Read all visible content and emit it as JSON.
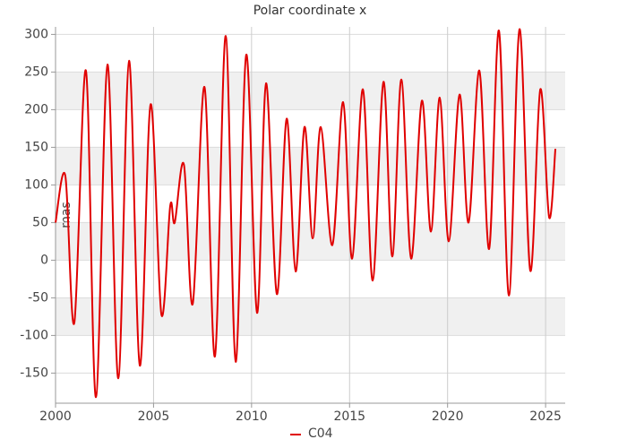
{
  "chart_data": {
    "type": "line",
    "title": "Polar coordinate x",
    "y_label": "mas",
    "x": [
      2000.0,
      2000.5,
      2000.96,
      2001.55,
      2002.06,
      2002.65,
      2003.2,
      2003.75,
      2004.3,
      2004.85,
      2005.4,
      2005.85,
      2006.08,
      2006.55,
      2007.0,
      2007.6,
      2008.13,
      2008.68,
      2009.19,
      2009.73,
      2010.28,
      2010.74,
      2011.29,
      2011.79,
      2012.25,
      2012.7,
      2013.12,
      2013.53,
      2014.12,
      2014.67,
      2015.13,
      2015.68,
      2016.18,
      2016.73,
      2017.18,
      2017.64,
      2018.14,
      2018.69,
      2019.15,
      2019.6,
      2020.06,
      2020.61,
      2021.07,
      2021.62,
      2022.12,
      2022.62,
      2023.13,
      2023.67,
      2024.22,
      2024.73,
      2025.18,
      2025.5
    ],
    "series": [
      {
        "name": "C04",
        "color": "#e00000",
        "values": [
          50,
          112,
          -83,
          252,
          -182,
          260,
          -157,
          265,
          -140,
          207,
          -72,
          72,
          50,
          127,
          -58,
          230,
          -128,
          298,
          -135,
          273,
          -70,
          235,
          -45,
          188,
          -15,
          177,
          29,
          177,
          20,
          210,
          2,
          227,
          -27,
          237,
          5,
          240,
          2,
          212,
          38,
          216,
          25,
          220,
          50,
          252,
          15,
          305,
          -47,
          307,
          -14,
          227,
          57,
          148
        ]
      }
    ],
    "xlim": [
      2000,
      2026
    ],
    "xticks": [
      2000,
      2005,
      2010,
      2015,
      2020,
      2025
    ],
    "ylim": [
      -190,
      310
    ],
    "yticks": [
      -150,
      -100,
      -50,
      0,
      50,
      100,
      150,
      200,
      250,
      300
    ],
    "grid": true,
    "legend": "bottom"
  }
}
